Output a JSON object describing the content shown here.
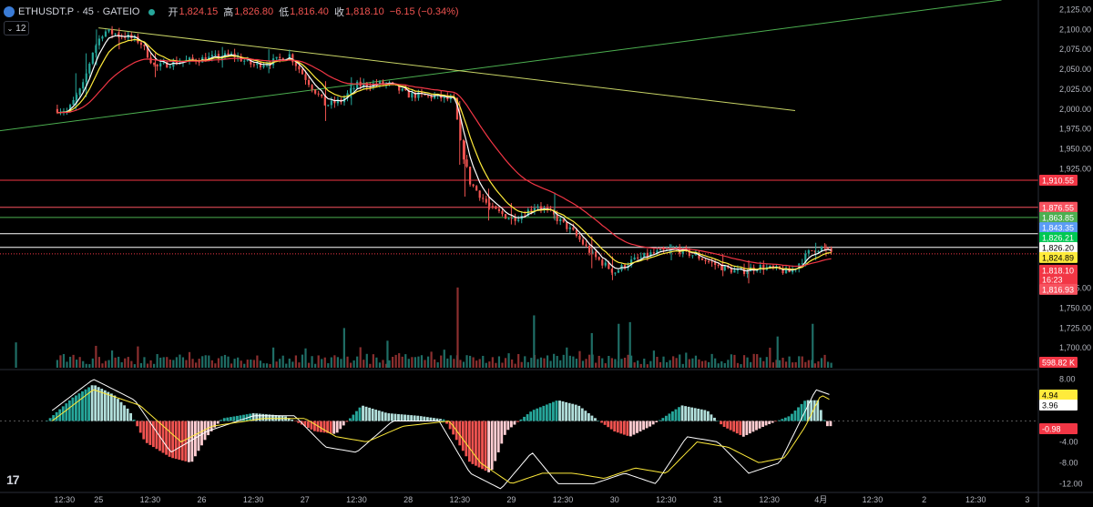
{
  "header": {
    "symbol": "ETHUSDT.P · 45 · GATEIO",
    "open_label": "开",
    "open": "1,824.15",
    "high_label": "高",
    "high": "1,826.80",
    "low_label": "低",
    "low": "1,816.40",
    "close_label": "收",
    "close": "1,818.10",
    "change": "−6.15 (−0.34%)",
    "interval_toggle": "12",
    "interval_chevron_icon": "chevron-down-icon",
    "logo_icon": "tradingview-logo-icon",
    "logo_text": "17"
  },
  "colors": {
    "up": "#26a69a",
    "down": "#ef5350",
    "ma_fast": "#ffffff",
    "ma_mid": "#ffeb3b",
    "ma_slow": "#f23645",
    "trend_up": "#4caf50",
    "trend_down": "#c8d466",
    "background": "#000000"
  },
  "chart_data": [
    {
      "type": "candlestick",
      "title": "ETHUSDT.P · 45 · GATEIO",
      "ylim": [
        1675,
        2137
      ],
      "y_ticks": [
        "2,125.00",
        "2,100.00",
        "2,075.00",
        "2,050.00",
        "2,025.00",
        "2,000.00",
        "1,975.00",
        "1,950.00",
        "1,925.00",
        "1,775.00",
        "1,750.00",
        "1,725.00",
        "1,700.00"
      ],
      "y_tick_values": [
        2125,
        2100,
        2075,
        2050,
        2025,
        2000,
        1975,
        1950,
        1925,
        1775,
        1750,
        1725,
        1700
      ],
      "x_ticks": [
        "12:30",
        "25",
        "12:30",
        "26",
        "12:30",
        "27",
        "12:30",
        "28",
        "12:30",
        "29",
        "12:30",
        "30",
        "12:30",
        "31",
        "12:30",
        "4月",
        "12:30",
        "2",
        "12:30",
        "3"
      ],
      "x_tick_time": [
        0.67,
        1.0,
        1.5,
        2.0,
        2.5,
        3.0,
        3.5,
        4.0,
        4.5,
        5.0,
        5.5,
        6.0,
        6.5,
        7.0,
        7.5,
        8.0,
        8.5,
        9.0,
        9.5,
        10.0
      ],
      "x_unit": "days from start of day 24",
      "price_path": [
        [
          0.6,
          2000
        ],
        [
          0.7,
          1997
        ],
        [
          0.85,
          2030
        ],
        [
          0.95,
          2075
        ],
        [
          1.05,
          2098
        ],
        [
          1.25,
          2092
        ],
        [
          1.4,
          2085
        ],
        [
          1.55,
          2052
        ],
        [
          1.7,
          2058
        ],
        [
          2.0,
          2063
        ],
        [
          2.3,
          2068
        ],
        [
          2.5,
          2055
        ],
        [
          2.7,
          2060
        ],
        [
          2.85,
          2068
        ],
        [
          3.0,
          2040
        ],
        [
          3.2,
          2005
        ],
        [
          3.35,
          2010
        ],
        [
          3.5,
          2030
        ],
        [
          3.8,
          2032
        ],
        [
          4.0,
          2018
        ],
        [
          4.3,
          2015
        ],
        [
          4.45,
          2010
        ],
        [
          4.5,
          1960
        ],
        [
          4.6,
          1908
        ],
        [
          4.8,
          1875
        ],
        [
          5.0,
          1862
        ],
        [
          5.1,
          1867
        ],
        [
          5.25,
          1880
        ],
        [
          5.4,
          1867
        ],
        [
          5.6,
          1845
        ],
        [
          5.8,
          1815
        ],
        [
          6.0,
          1795
        ],
        [
          6.15,
          1808
        ],
        [
          6.35,
          1818
        ],
        [
          6.6,
          1824
        ],
        [
          6.8,
          1815
        ],
        [
          7.0,
          1803
        ],
        [
          7.2,
          1795
        ],
        [
          7.4,
          1802
        ],
        [
          7.7,
          1795
        ],
        [
          7.8,
          1808
        ],
        [
          7.9,
          1822
        ],
        [
          8.0,
          1826
        ],
        [
          8.1,
          1820
        ]
      ],
      "candles": [
        {
          "x": 0.78,
          "low": 1998,
          "high": 2045,
          "up": true
        },
        {
          "x": 0.88,
          "low": 2015,
          "high": 2070,
          "up": true
        },
        {
          "x": 0.98,
          "low": 2055,
          "high": 2100,
          "up": true
        },
        {
          "x": 1.2,
          "low": 2075,
          "high": 2102,
          "up": false
        },
        {
          "x": 1.55,
          "low": 2040,
          "high": 2070,
          "up": false
        },
        {
          "x": 2.2,
          "low": 2052,
          "high": 2078,
          "up": true
        },
        {
          "x": 2.65,
          "low": 2045,
          "high": 2075,
          "up": true
        },
        {
          "x": 3.2,
          "low": 1985,
          "high": 2035,
          "up": false
        },
        {
          "x": 3.45,
          "low": 2005,
          "high": 2040,
          "up": true
        },
        {
          "x": 4.5,
          "low": 1930,
          "high": 2010,
          "up": false
        },
        {
          "x": 4.55,
          "low": 1890,
          "high": 1960,
          "up": false
        },
        {
          "x": 4.78,
          "low": 1860,
          "high": 1900,
          "up": false
        },
        {
          "x": 5.0,
          "low": 1855,
          "high": 1882,
          "up": false
        },
        {
          "x": 5.42,
          "low": 1860,
          "high": 1895,
          "up": true
        },
        {
          "x": 5.78,
          "low": 1800,
          "high": 1840,
          "up": false
        },
        {
          "x": 5.98,
          "low": 1785,
          "high": 1815,
          "up": false
        },
        {
          "x": 6.55,
          "low": 1810,
          "high": 1830,
          "up": true
        },
        {
          "x": 7.05,
          "low": 1790,
          "high": 1818,
          "up": false
        },
        {
          "x": 7.3,
          "low": 1781,
          "high": 1810,
          "up": false
        },
        {
          "x": 7.95,
          "low": 1810,
          "high": 1832,
          "up": true
        },
        {
          "x": 8.05,
          "low": 1815,
          "high": 1830,
          "up": false
        }
      ],
      "trendlines": [
        {
          "color": "#4caf50",
          "from": [
            0.0,
            1972
          ],
          "to": [
            9.75,
            2137
          ]
        },
        {
          "color": "#c8d466",
          "from": [
            1.0,
            2102
          ],
          "to": [
            7.75,
            1998
          ]
        }
      ],
      "horizontal_lines": [
        {
          "price": 1910.55,
          "color": "#f23645",
          "label": "1,910.55"
        },
        {
          "price": 1876.55,
          "color": "#f7525f",
          "label": "1,876.55"
        },
        {
          "price": 1863.85,
          "color": "#4caf50",
          "label": "1,863.85"
        },
        {
          "price": 1843.35,
          "color": "#ffffff",
          "label": "1,843.35"
        },
        {
          "price": 1826.2,
          "color": "#ffffff",
          "label": "1,826.20"
        }
      ],
      "price_labels": [
        {
          "price": 1910.55,
          "text": "1,910.55",
          "bg": "#f23645",
          "fg": "#ffffff"
        },
        {
          "price": 1876.55,
          "text": "1,876.55",
          "bg": "#f7525f",
          "fg": "#ffffff"
        },
        {
          "price": 1863.85,
          "text": "1,863.85",
          "bg": "#4caf50",
          "fg": "#ffffff"
        },
        {
          "price": 1851.0,
          "text": "1,843.35",
          "bg": "#5b9cf6",
          "fg": "#ffffff"
        },
        {
          "price": 1838.5,
          "text": "1,826.21",
          "bg": "#00c853",
          "fg": "#ffffff"
        },
        {
          "price": 1826.0,
          "text": "1,826.20",
          "bg": "#ffffff",
          "fg": "#000000"
        },
        {
          "price": 1813.5,
          "text": "1,824.89",
          "bg": "#ffeb3b",
          "fg": "#000000"
        },
        {
          "price": 1797.5,
          "text": "1,818.10",
          "bg": "#f23645",
          "fg": "#ffffff"
        },
        {
          "price": 1786.0,
          "text": "16:23",
          "bg": "#f23645",
          "fg": "#ffffff"
        },
        {
          "price": 1773.5,
          "text": "1,816.93",
          "bg": "#f7525f",
          "fg": "#ffffff"
        }
      ],
      "current_price": 1818.1
    },
    {
      "type": "bar",
      "title": "Volume",
      "last_value_label": "598.82 K",
      "spikes": [
        {
          "x": 4.48,
          "h": 0.95
        },
        {
          "x": 5.22,
          "h": 0.62
        },
        {
          "x": 3.38,
          "h": 0.47
        },
        {
          "x": 6.04,
          "h": 0.52
        },
        {
          "x": 7.58,
          "h": 0.37
        },
        {
          "x": 7.92,
          "h": 0.52
        },
        {
          "x": 6.15,
          "h": 0.54
        },
        {
          "x": 5.78,
          "h": 0.41
        },
        {
          "x": 3.8,
          "h": 0.32
        },
        {
          "x": 0.2,
          "h": 0.3
        }
      ]
    },
    {
      "type": "histogram",
      "title": "MACD",
      "ylim": [
        -13.5,
        9.5
      ],
      "y_ticks": [
        "8.00",
        "4.00",
        "-4.00",
        "-8.00",
        "-12.00"
      ],
      "y_tick_values": [
        8,
        4,
        -4,
        -8,
        -12
      ],
      "histogram_path": [
        [
          0.5,
          0
        ],
        [
          0.75,
          4.5
        ],
        [
          0.95,
          7
        ],
        [
          1.15,
          5
        ],
        [
          1.3,
          2
        ],
        [
          1.45,
          -4
        ],
        [
          1.7,
          -7
        ],
        [
          1.9,
          -8
        ],
        [
          2.05,
          -3
        ],
        [
          2.2,
          0.5
        ],
        [
          2.5,
          1.5
        ],
        [
          2.8,
          1
        ],
        [
          3.0,
          -1
        ],
        [
          3.1,
          -2
        ],
        [
          3.3,
          -2.5
        ],
        [
          3.55,
          3
        ],
        [
          3.8,
          1.5
        ],
        [
          4.1,
          1
        ],
        [
          4.35,
          0.3
        ],
        [
          4.45,
          -3
        ],
        [
          4.6,
          -8
        ],
        [
          4.8,
          -10
        ],
        [
          4.95,
          -2
        ],
        [
          5.2,
          2
        ],
        [
          5.45,
          4
        ],
        [
          5.65,
          3
        ],
        [
          5.85,
          0
        ],
        [
          6.0,
          -2
        ],
        [
          6.15,
          -3
        ],
        [
          6.35,
          -1
        ],
        [
          6.65,
          3
        ],
        [
          6.9,
          2
        ],
        [
          7.05,
          -1
        ],
        [
          7.25,
          -3
        ],
        [
          7.45,
          -1
        ],
        [
          7.7,
          1
        ],
        [
          7.85,
          4
        ],
        [
          7.97,
          3.96
        ],
        [
          8.05,
          -0.98
        ]
      ],
      "macd_line": [
        [
          0.55,
          2
        ],
        [
          0.95,
          8
        ],
        [
          1.35,
          4
        ],
        [
          1.7,
          -6
        ],
        [
          2.05,
          -2
        ],
        [
          2.5,
          1
        ],
        [
          2.9,
          1
        ],
        [
          3.2,
          -5
        ],
        [
          3.5,
          -6
        ],
        [
          3.85,
          0
        ],
        [
          4.3,
          0
        ],
        [
          4.6,
          -10
        ],
        [
          4.9,
          -13
        ],
        [
          5.2,
          -6
        ],
        [
          5.45,
          -12
        ],
        [
          5.8,
          -12
        ],
        [
          6.1,
          -10
        ],
        [
          6.4,
          -12
        ],
        [
          6.7,
          -3
        ],
        [
          7.0,
          -4
        ],
        [
          7.3,
          -10
        ],
        [
          7.6,
          -8
        ],
        [
          7.8,
          0
        ],
        [
          7.95,
          6
        ],
        [
          8.1,
          4.94
        ]
      ],
      "signal_line": [
        [
          0.55,
          0
        ],
        [
          0.95,
          6
        ],
        [
          1.4,
          3
        ],
        [
          1.8,
          -4
        ],
        [
          2.1,
          -1
        ],
        [
          2.6,
          0.5
        ],
        [
          3.0,
          0.5
        ],
        [
          3.3,
          -3
        ],
        [
          3.6,
          -4
        ],
        [
          3.95,
          -1
        ],
        [
          4.4,
          0
        ],
        [
          4.7,
          -8
        ],
        [
          5.0,
          -12
        ],
        [
          5.3,
          -10
        ],
        [
          5.6,
          -10
        ],
        [
          5.9,
          -11
        ],
        [
          6.2,
          -9
        ],
        [
          6.5,
          -10
        ],
        [
          6.8,
          -4
        ],
        [
          7.1,
          -5
        ],
        [
          7.4,
          -8
        ],
        [
          7.65,
          -7
        ],
        [
          7.85,
          -1
        ],
        [
          8.0,
          5
        ],
        [
          8.1,
          3.96
        ]
      ],
      "labels": [
        {
          "value": 4.94,
          "text": "4.94",
          "bg": "#ffeb3b",
          "fg": "#000000"
        },
        {
          "value": 3.96,
          "text": "3.96",
          "bg": "#ffffff",
          "fg": "#000000"
        },
        {
          "value": -0.98,
          "text": "-0.98",
          "bg": "#f23645",
          "fg": "#ffffff"
        }
      ]
    }
  ]
}
